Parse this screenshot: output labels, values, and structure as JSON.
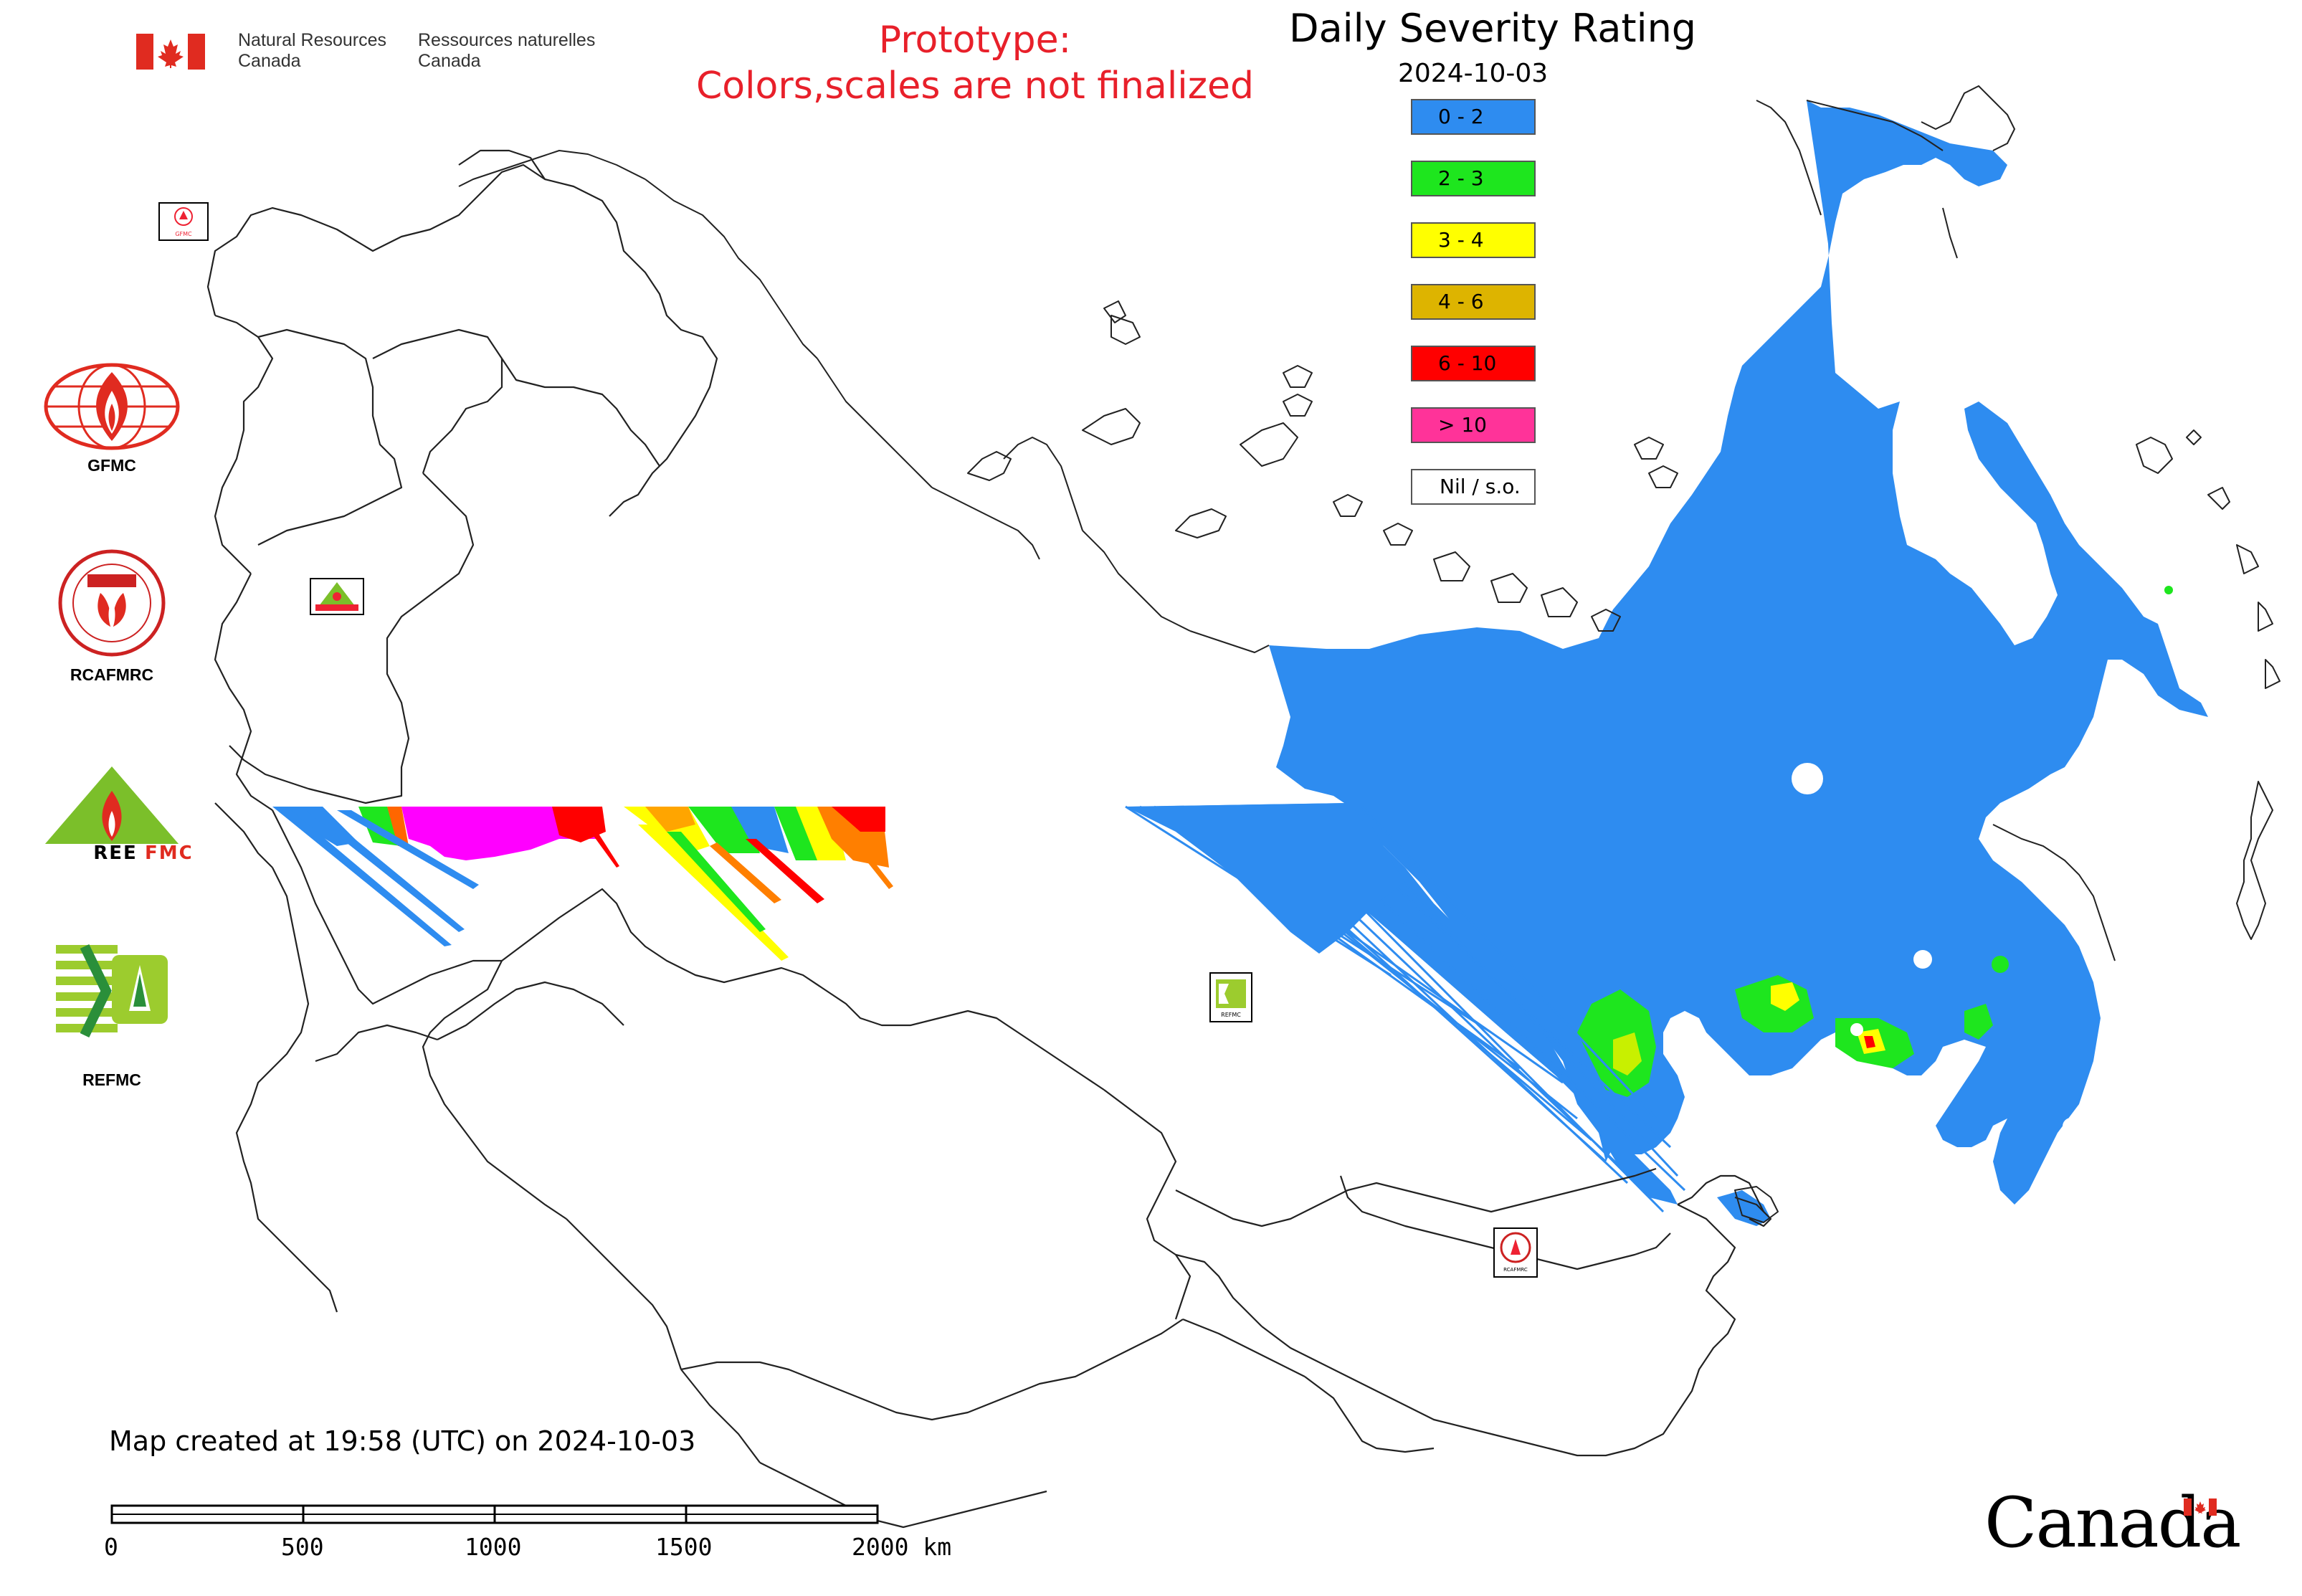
{
  "header": {
    "dept_en_line1": "Natural Resources",
    "dept_en_line2": "Canada",
    "dept_fr_line1": "Ressources naturelles",
    "dept_fr_line2": "Canada"
  },
  "notice": {
    "line1": "Prototype:",
    "line2": "Colors,scales are not finalized",
    "color": "#e8202a"
  },
  "map": {
    "title": "Daily Severity Rating",
    "date": "2024-10-03"
  },
  "legend": [
    {
      "label": "0 - 2",
      "color": "#2e8cf0"
    },
    {
      "label": "2 - 3",
      "color": "#1ee61e"
    },
    {
      "label": "3 - 4",
      "color": "#ffff00"
    },
    {
      "label": "4 - 6",
      "color": "#ddb400"
    },
    {
      "label": "6 - 10",
      "color": "#ff0000"
    },
    {
      "label": "> 10",
      "color": "#ff3399"
    },
    {
      "label": "Nil / s.o.",
      "color": "#ffffff"
    }
  ],
  "organizations": [
    {
      "label": "GFMC",
      "icon": "gfmc-logo-icon"
    },
    {
      "label": "RCAFMRC",
      "icon": "rcafmrc-logo-icon"
    },
    {
      "label": "",
      "icon": "reefmc-logo-icon",
      "logo_text": "REEFMC"
    },
    {
      "label": "REFMC",
      "icon": "refmc-logo-icon"
    }
  ],
  "footer": {
    "created": "Map created at 19:58 (UTC) on 2024-10-03",
    "scale_ticks": [
      "0",
      "500",
      "1000",
      "1500",
      "2000 km"
    ],
    "wordmark": "Canada"
  }
}
